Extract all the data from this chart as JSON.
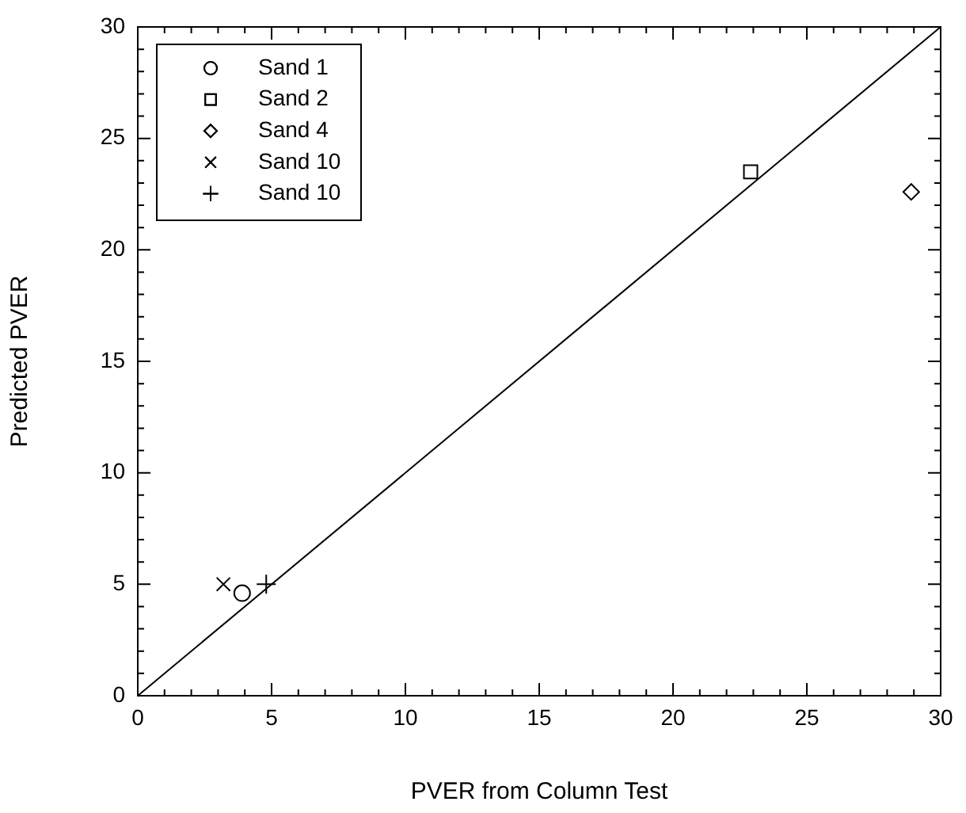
{
  "chart_data": {
    "type": "scatter",
    "xlabel": "PVER from Column Test",
    "ylabel": "Predicted PVER",
    "xlim": [
      0,
      30
    ],
    "ylim": [
      0,
      30
    ],
    "xticks": [
      0,
      5,
      10,
      15,
      20,
      25,
      30
    ],
    "yticks": [
      0,
      5,
      10,
      15,
      20,
      25,
      30
    ],
    "grid": false,
    "legend": "top left",
    "series": [
      {
        "name": "Sand 1",
        "color": "#000000",
        "marker": "circle",
        "x": [
          3.9
        ],
        "values": [
          4.6
        ]
      },
      {
        "name": "Sand 2",
        "color": "#000000",
        "marker": "square",
        "x": [
          22.9
        ],
        "values": [
          23.5
        ]
      },
      {
        "name": "Sand 4",
        "color": "#000000",
        "marker": "diamond",
        "x": [
          28.9
        ],
        "values": [
          22.6
        ]
      },
      {
        "name": "Sand 10",
        "color": "#000000",
        "marker": "cross",
        "x": [
          3.2
        ],
        "values": [
          5.0
        ]
      },
      {
        "name": "Sand 10",
        "color": "#000000",
        "marker": "plus",
        "x": [
          4.8
        ],
        "values": [
          5.0
        ]
      },
      {
        "type": "line",
        "color": "#000000",
        "marker": "none",
        "x": [
          0,
          30
        ],
        "values": [
          0,
          30
        ]
      }
    ]
  }
}
